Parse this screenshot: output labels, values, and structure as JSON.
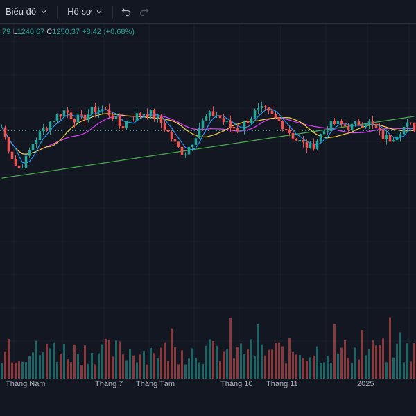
{
  "toolbar": {
    "chart_label": "Biểu đồ",
    "profile_label": "Hồ sơ"
  },
  "ohlc": {
    "open_partial": ".79",
    "low_key": "L",
    "low_value": "1240.67",
    "close_key": "C",
    "close_value": "1250.37",
    "change": "+8.42 (+0.68%)"
  },
  "x_axis": {
    "labels": [
      "Tháng Năm",
      "Tháng 7",
      "Tháng Tám",
      "Tháng 10",
      "Tháng 11",
      "2025"
    ]
  },
  "colors": {
    "background": "#131722",
    "grid": "#1e222d",
    "up": "#26a69a",
    "down": "#ef5350",
    "ma_fast": "#2196f3",
    "ma_mid": "#e040fb",
    "ma_slow": "#f5d142",
    "ma_long": "#4caf50"
  },
  "icons": [
    "chevron-down-icon",
    "undo-icon",
    "redo-icon"
  ],
  "chart_data": {
    "type": "candlestick",
    "series": [
      {
        "name": "",
        "values": [
          1250,
          1225,
          1205,
          1215,
          1235,
          1245,
          1255,
          1262,
          1268,
          1260,
          1258,
          1265,
          1270,
          1268,
          1262,
          1250,
          1258,
          1262,
          1266,
          1264,
          1256,
          1244,
          1230,
          1222,
          1235,
          1252,
          1262,
          1264,
          1256,
          1250,
          1248,
          1258,
          1266,
          1268,
          1262,
          1256,
          1248,
          1238,
          1232,
          1228,
          1240,
          1250,
          1254,
          1252,
          1250,
          1254,
          1256,
          1250,
          1240,
          1238,
          1246,
          1252,
          1250
        ]
      }
    ]
  }
}
